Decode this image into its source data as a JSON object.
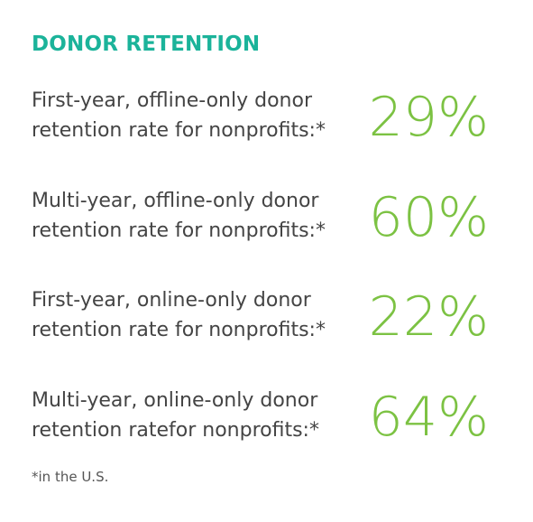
{
  "heading": "DONOR RETENTION",
  "stats": [
    {
      "label_line1": "First-year, offline-only donor",
      "label_line2": "retention rate for nonprofits:*",
      "value": "29%"
    },
    {
      "label_line1": "Multi-year, offline-only donor",
      "label_line2": "retention rate for nonprofits:*",
      "value": "60%"
    },
    {
      "label_line1": "First-year, online-only donor",
      "label_line2": "retention rate for nonprofits:*",
      "value": "22%"
    },
    {
      "label_line1": "Multi-year, online-only donor",
      "label_line2": "retention ratefor nonprofits:*",
      "value": "64%"
    }
  ],
  "footnote": "*in the U.S.",
  "colors": {
    "heading": "#1bb39a",
    "value": "#7cc243",
    "label": "#444444"
  }
}
